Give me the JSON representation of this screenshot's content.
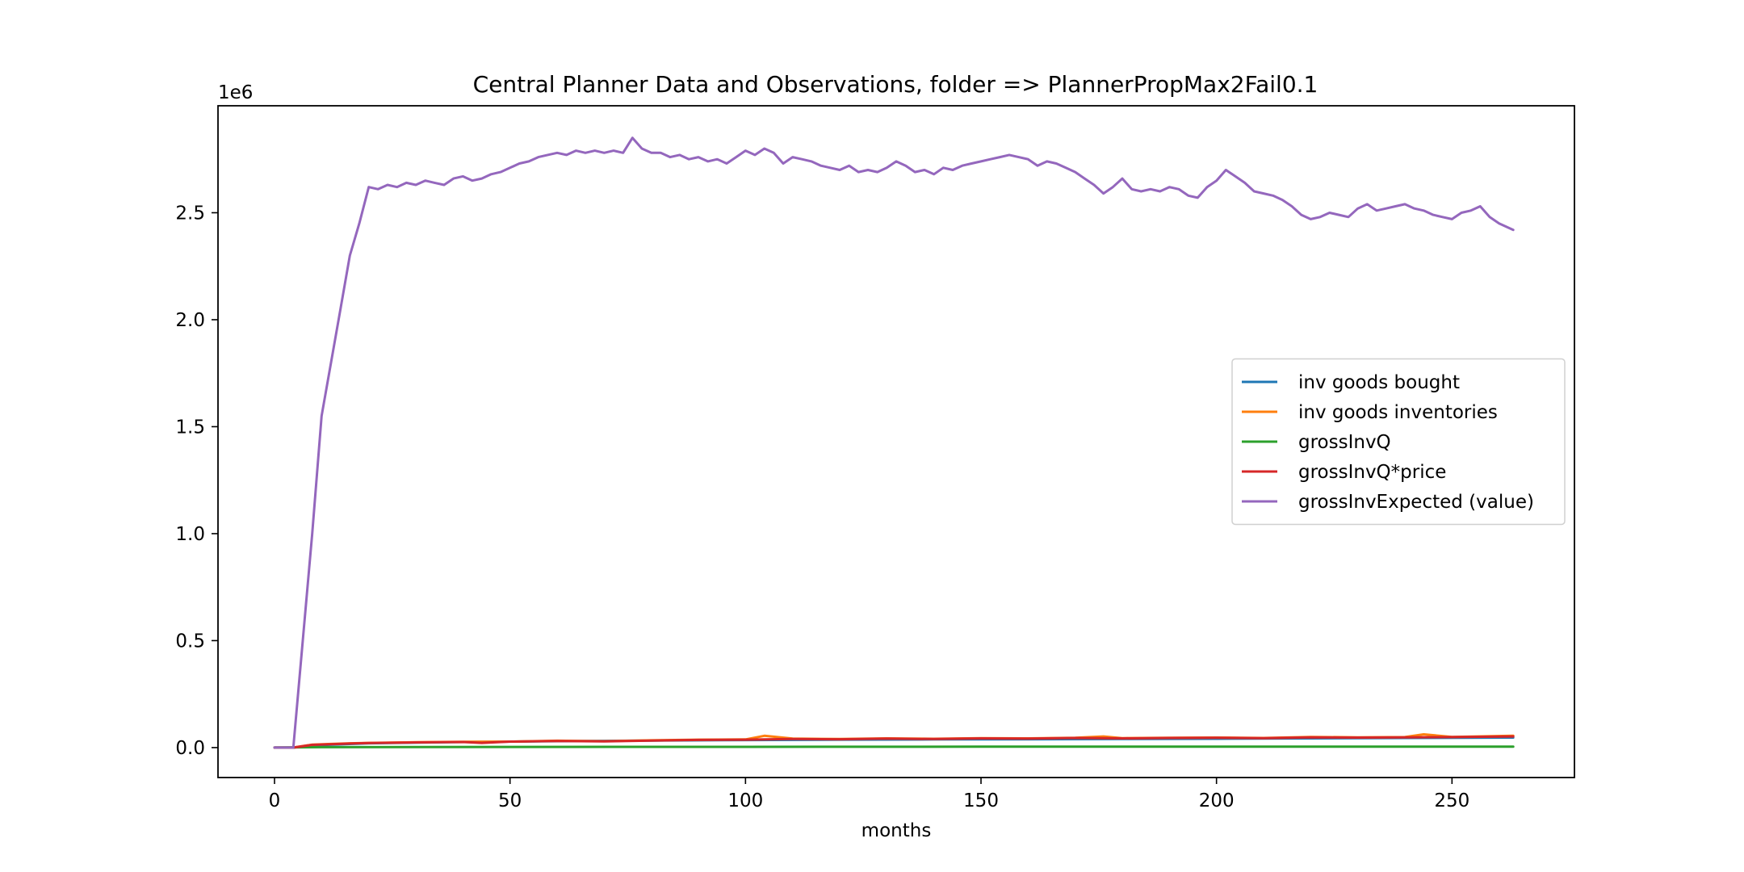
{
  "chart_data": {
    "type": "line",
    "title": "Central Planner Data and Observations, folder => PlannerPropMax2Fail0.1",
    "xlabel": "months",
    "ylabel": "",
    "y_offset_label": "1e6",
    "xlim": [
      -12,
      276
    ],
    "ylim": [
      -140000,
      3000000
    ],
    "xticks": [
      0,
      50,
      100,
      150,
      200,
      250
    ],
    "yticks": [
      0,
      500000,
      1000000,
      1500000,
      2000000,
      2500000
    ],
    "ytick_labels": [
      "0.0",
      "0.5",
      "1.0",
      "1.5",
      "2.0",
      "2.5"
    ],
    "grid": false,
    "legend_position": "center-right",
    "colors": {
      "inv_goods_bought": "#1f77b4",
      "inv_goods_inventories": "#ff7f0e",
      "grossInvQ": "#2ca02c",
      "grossInvQ_price": "#d62728",
      "grossInvExpected": "#9467bd"
    },
    "series": [
      {
        "name": "inv goods bought",
        "color": "#1f77b4",
        "x": [
          0,
          4,
          10,
          20,
          40,
          60,
          80,
          100,
          120,
          140,
          160,
          180,
          200,
          220,
          240,
          263
        ],
        "y": [
          0,
          0,
          12000,
          20000,
          26000,
          30000,
          33000,
          35000,
          37000,
          38000,
          39000,
          40000,
          41000,
          43000,
          45000,
          47000
        ]
      },
      {
        "name": "inv goods inventories",
        "color": "#ff7f0e",
        "x": [
          0,
          4,
          8,
          12,
          16,
          20,
          30,
          40,
          50,
          60,
          70,
          80,
          90,
          100,
          104,
          110,
          120,
          130,
          140,
          150,
          160,
          170,
          176,
          180,
          190,
          200,
          210,
          220,
          230,
          240,
          244,
          250,
          263
        ],
        "y": [
          0,
          0,
          14000,
          17000,
          20000,
          22000,
          25000,
          27000,
          28000,
          32000,
          30000,
          34000,
          37000,
          38000,
          55000,
          42000,
          40000,
          43000,
          41000,
          44000,
          43000,
          46000,
          52000,
          44000,
          46000,
          47000,
          45000,
          50000,
          48000,
          49000,
          62000,
          50000,
          55000
        ]
      },
      {
        "name": "grossInvQ",
        "color": "#2ca02c",
        "x": [
          0,
          10,
          50,
          100,
          150,
          200,
          263
        ],
        "y": [
          0,
          2000,
          3000,
          3500,
          4000,
          4000,
          4500
        ]
      },
      {
        "name": "grossInvQ*price",
        "color": "#d62728",
        "x": [
          0,
          4,
          8,
          12,
          16,
          20,
          30,
          40,
          44,
          50,
          60,
          70,
          80,
          90,
          100,
          110,
          120,
          130,
          140,
          150,
          160,
          170,
          180,
          190,
          200,
          210,
          220,
          230,
          240,
          250,
          263
        ],
        "y": [
          0,
          0,
          13000,
          16000,
          19000,
          21000,
          24000,
          26000,
          22000,
          28000,
          31000,
          29000,
          33000,
          36000,
          37000,
          40000,
          39000,
          42000,
          40000,
          43000,
          42000,
          45000,
          43000,
          45000,
          46000,
          44000,
          48000,
          47000,
          48000,
          49000,
          52000
        ]
      },
      {
        "name": "grossInvExpected (value)",
        "color": "#9467bd",
        "x": [
          0,
          4,
          6,
          8,
          10,
          12,
          14,
          16,
          18,
          20,
          22,
          24,
          26,
          28,
          30,
          32,
          34,
          36,
          38,
          40,
          42,
          44,
          46,
          48,
          50,
          52,
          54,
          56,
          58,
          60,
          62,
          64,
          66,
          68,
          70,
          72,
          74,
          76,
          78,
          80,
          82,
          84,
          86,
          88,
          90,
          92,
          94,
          96,
          98,
          100,
          102,
          104,
          106,
          108,
          110,
          112,
          114,
          116,
          118,
          120,
          122,
          124,
          126,
          128,
          130,
          132,
          134,
          136,
          138,
          140,
          142,
          144,
          146,
          148,
          150,
          152,
          154,
          156,
          158,
          160,
          162,
          164,
          166,
          168,
          170,
          172,
          174,
          176,
          178,
          180,
          182,
          184,
          186,
          188,
          190,
          192,
          194,
          196,
          198,
          200,
          202,
          204,
          206,
          208,
          210,
          212,
          214,
          216,
          218,
          220,
          222,
          224,
          226,
          228,
          230,
          232,
          234,
          236,
          238,
          240,
          242,
          244,
          246,
          248,
          250,
          252,
          254,
          256,
          258,
          260,
          263
        ],
        "y": [
          0,
          0,
          500000,
          1000000,
          1550000,
          1800000,
          2050000,
          2300000,
          2450000,
          2620000,
          2610000,
          2630000,
          2620000,
          2640000,
          2630000,
          2650000,
          2640000,
          2630000,
          2660000,
          2670000,
          2650000,
          2660000,
          2680000,
          2690000,
          2710000,
          2730000,
          2740000,
          2760000,
          2770000,
          2780000,
          2770000,
          2790000,
          2780000,
          2790000,
          2780000,
          2790000,
          2780000,
          2850000,
          2800000,
          2780000,
          2780000,
          2760000,
          2770000,
          2750000,
          2760000,
          2740000,
          2750000,
          2730000,
          2760000,
          2790000,
          2770000,
          2800000,
          2780000,
          2730000,
          2760000,
          2750000,
          2740000,
          2720000,
          2710000,
          2700000,
          2720000,
          2690000,
          2700000,
          2690000,
          2710000,
          2740000,
          2720000,
          2690000,
          2700000,
          2680000,
          2710000,
          2700000,
          2720000,
          2730000,
          2740000,
          2750000,
          2760000,
          2770000,
          2760000,
          2750000,
          2720000,
          2740000,
          2730000,
          2710000,
          2690000,
          2660000,
          2630000,
          2590000,
          2620000,
          2660000,
          2610000,
          2600000,
          2610000,
          2600000,
          2620000,
          2610000,
          2580000,
          2570000,
          2620000,
          2650000,
          2700000,
          2670000,
          2640000,
          2600000,
          2590000,
          2580000,
          2560000,
          2530000,
          2490000,
          2470000,
          2480000,
          2500000,
          2490000,
          2480000,
          2520000,
          2540000,
          2510000,
          2520000,
          2530000,
          2540000,
          2520000,
          2510000,
          2490000,
          2480000,
          2470000,
          2500000,
          2510000,
          2530000,
          2480000,
          2450000,
          2420000
        ]
      }
    ]
  }
}
